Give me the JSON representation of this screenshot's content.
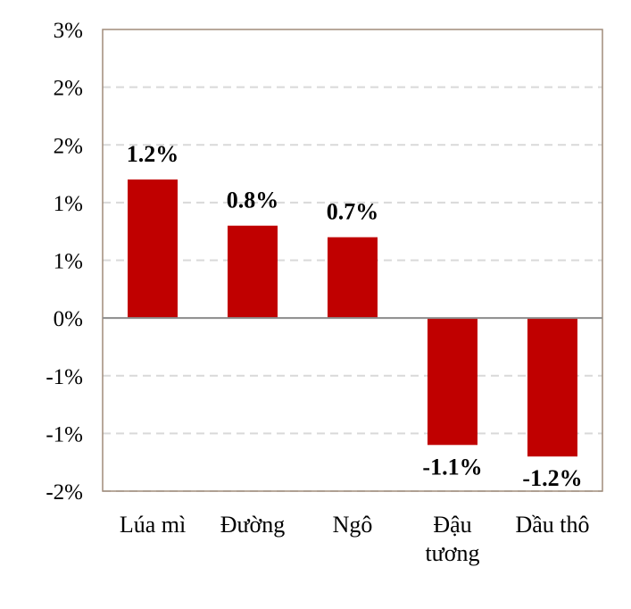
{
  "chart_data": {
    "type": "bar",
    "title": "",
    "xlabel": "",
    "ylabel": "",
    "categories": [
      [
        "Lúa mì"
      ],
      [
        "Đường"
      ],
      [
        "Ngô"
      ],
      [
        "Đậu",
        "tương"
      ],
      [
        "Dầu thô"
      ]
    ],
    "values": [
      1.2,
      0.8,
      0.7,
      -1.1,
      -1.2
    ],
    "data_labels": [
      "1.2%",
      "0.8%",
      "0.7%",
      "-1.1%",
      "-1.2%"
    ],
    "ylim": [
      -1.5,
      2.5
    ],
    "y_ticks": [
      2.5,
      2.0,
      1.5,
      1.0,
      0.5,
      0.0,
      -0.5,
      -1.0,
      -1.5
    ],
    "y_tick_labels": [
      "3%",
      "2%",
      "2%",
      "1%",
      "1%",
      "0%",
      "-1%",
      "-1%",
      "-2%"
    ],
    "grid": "horizontal-dashed",
    "bar_color": "#c00000",
    "grid_color": "#d9d9d9",
    "frame_color": "#a08c7a",
    "zero_line_color": "#8c8c8c"
  }
}
